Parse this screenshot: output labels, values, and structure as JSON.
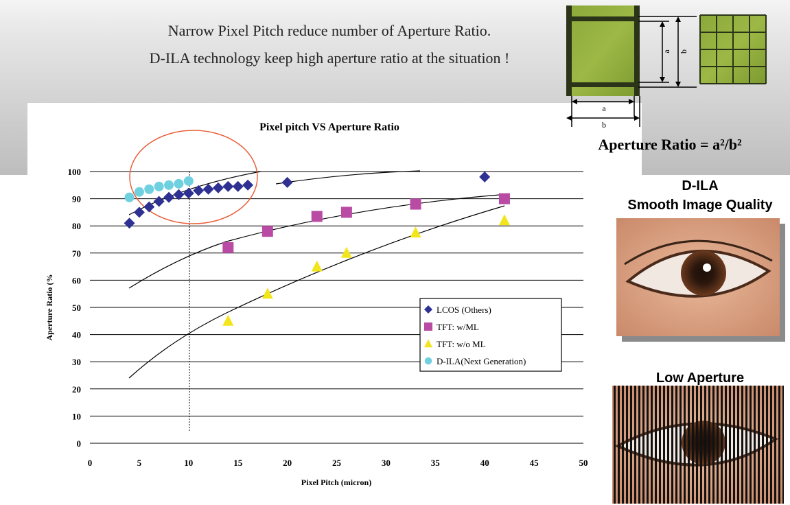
{
  "header": {
    "line1": "Narrow Pixel Pitch reduce number of Aperture Ratio.",
    "line2": "D-ILA technology keep high aperture ratio at the situation !"
  },
  "diagram": {
    "a_vertical": "a",
    "b_vertical": "b",
    "a_horizontal": "a",
    "b_horizontal": "b",
    "formula": "Aperture Ratio = a²/b²"
  },
  "panels": {
    "dila_title": "D-ILA",
    "dila_subtitle": "Smooth Image Quality",
    "low_title": "Low Aperture"
  },
  "chart_data": {
    "type": "scatter",
    "title": "Pixel pitch VS Aperture Ratio",
    "x_label": "Pixel Pitch (micron)",
    "y_label": "Aperture Ratio (%",
    "xlim": [
      0,
      50
    ],
    "xticks": [
      0,
      5,
      10,
      15,
      20,
      25,
      30,
      35,
      40,
      45,
      50
    ],
    "ylim": [
      0,
      100
    ],
    "yticks": [
      0,
      10,
      20,
      30,
      40,
      50,
      60,
      70,
      80,
      90,
      100
    ],
    "grid": true,
    "series": [
      {
        "name": "LCOS (Others)",
        "color": "#2e3192",
        "marker": "diamond",
        "x": [
          4,
          5,
          6,
          7,
          8,
          9,
          10,
          11,
          12,
          13,
          14,
          15,
          16,
          20,
          40
        ],
        "values": [
          81,
          85,
          87,
          89,
          90.5,
          91.5,
          92,
          93,
          93.5,
          94,
          94.5,
          94.5,
          95,
          96,
          98
        ]
      },
      {
        "name": "TFT: w/ML",
        "color": "#b94ba5",
        "marker": "square",
        "x": [
          14,
          18,
          23,
          26,
          33,
          42
        ],
        "values": [
          72,
          78,
          83.5,
          85,
          88,
          90
        ]
      },
      {
        "name": "TFT: w/o ML",
        "color": "#f3e51c",
        "marker": "triangle",
        "x": [
          14,
          18,
          23,
          26,
          33,
          42
        ],
        "values": [
          45,
          55,
          65,
          70,
          77.5,
          82
        ]
      },
      {
        "name": "D-ILA(Next Generation)",
        "color": "#6fd0e0",
        "marker": "circle",
        "x": [
          4,
          5,
          6,
          7,
          8,
          9,
          10
        ],
        "values": [
          90.5,
          92.5,
          93.5,
          94.5,
          95,
          95.5,
          96.5
        ]
      }
    ]
  }
}
